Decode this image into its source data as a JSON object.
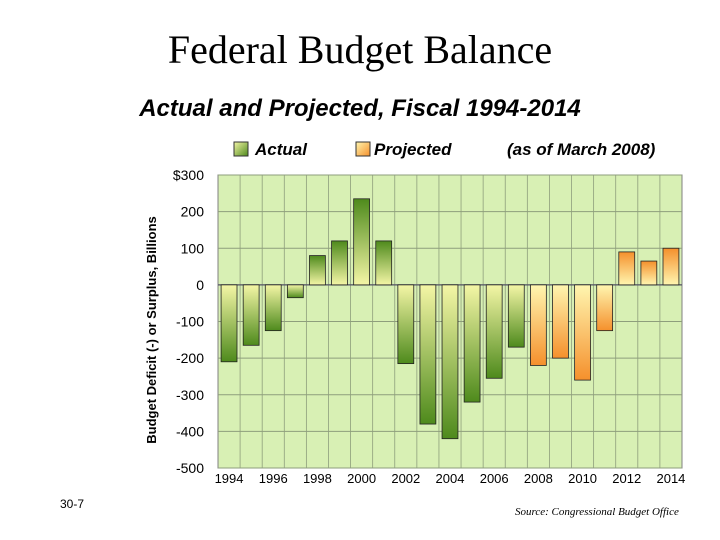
{
  "slide": {
    "title": "Federal Budget Balance",
    "subtitle": "Actual and Projected, Fiscal 1994-2014",
    "slide_number": "30-7",
    "source": "Source: Congressional Budget Office"
  },
  "colors": {
    "plot_bg": "#d8f0b4",
    "grid": "#8e9e7c",
    "actual_light": "#f4f6a6",
    "actual_dark": "#4e8a1c",
    "projected_light": "#fff6b0",
    "projected_dark": "#f5902c"
  },
  "chart_data": {
    "type": "bar",
    "title": "Actual and Projected, Fiscal 1994-2014",
    "ylabel": "Budget Deficit (-) or Surplus, Billions",
    "xlabel": "",
    "ylim": [
      -500,
      300
    ],
    "yticks": [
      300,
      200,
      100,
      0,
      -100,
      -200,
      -300,
      -400,
      -500
    ],
    "ytick_labels": [
      "$300",
      "200",
      "100",
      "0",
      "-100",
      "-200",
      "-300",
      "-400",
      "-500"
    ],
    "xtick_labels": [
      "1994",
      "1996",
      "1998",
      "2000",
      "2002",
      "2004",
      "2006",
      "2008",
      "2010",
      "2012",
      "2014"
    ],
    "grid": true,
    "legend": [
      {
        "label": "Actual",
        "series": "actual"
      },
      {
        "label": "Projected",
        "series": "projected"
      }
    ],
    "legend_note": "(as of March 2008)",
    "categories": [
      1994,
      1995,
      1996,
      1997,
      1998,
      1999,
      2000,
      2001,
      2002,
      2003,
      2004,
      2005,
      2006,
      2007,
      2008,
      2009,
      2010,
      2011,
      2012,
      2013,
      2014
    ],
    "values": [
      -210,
      -165,
      -125,
      -35,
      80,
      120,
      235,
      120,
      -215,
      -380,
      -420,
      -320,
      -255,
      -170,
      -220,
      -200,
      -260,
      -125,
      90,
      65,
      100
    ],
    "series_kind": [
      "actual",
      "actual",
      "actual",
      "actual",
      "actual",
      "actual",
      "actual",
      "actual",
      "actual",
      "actual",
      "actual",
      "actual",
      "actual",
      "actual",
      "projected",
      "projected",
      "projected",
      "projected",
      "projected",
      "projected",
      "projected"
    ]
  }
}
